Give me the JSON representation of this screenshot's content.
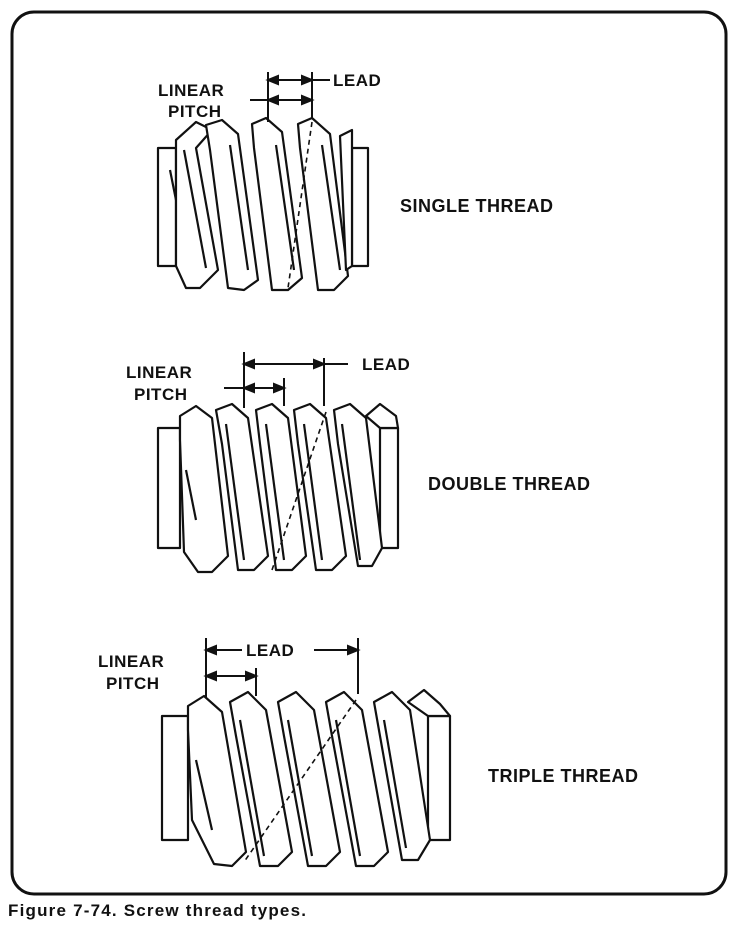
{
  "figure": {
    "caption": "Figure 7-74. Screw thread types."
  },
  "panels": [
    {
      "thread_type": "SINGLE THREAD",
      "linear_label": "LINEAR",
      "pitch_label": "PITCH",
      "lead_label": "LEAD",
      "crests": 4
    },
    {
      "thread_type": "DOUBLE THREAD",
      "linear_label": "LINEAR",
      "pitch_label": "PITCH",
      "lead_label": "LEAD",
      "crests": 6
    },
    {
      "thread_type": "TRIPLE THREAD",
      "linear_label": "LINEAR",
      "pitch_label": "PITCH",
      "lead_label": "LEAD",
      "crests": 6
    }
  ],
  "colors": {
    "ink": "#111111",
    "paper": "#ffffff"
  }
}
